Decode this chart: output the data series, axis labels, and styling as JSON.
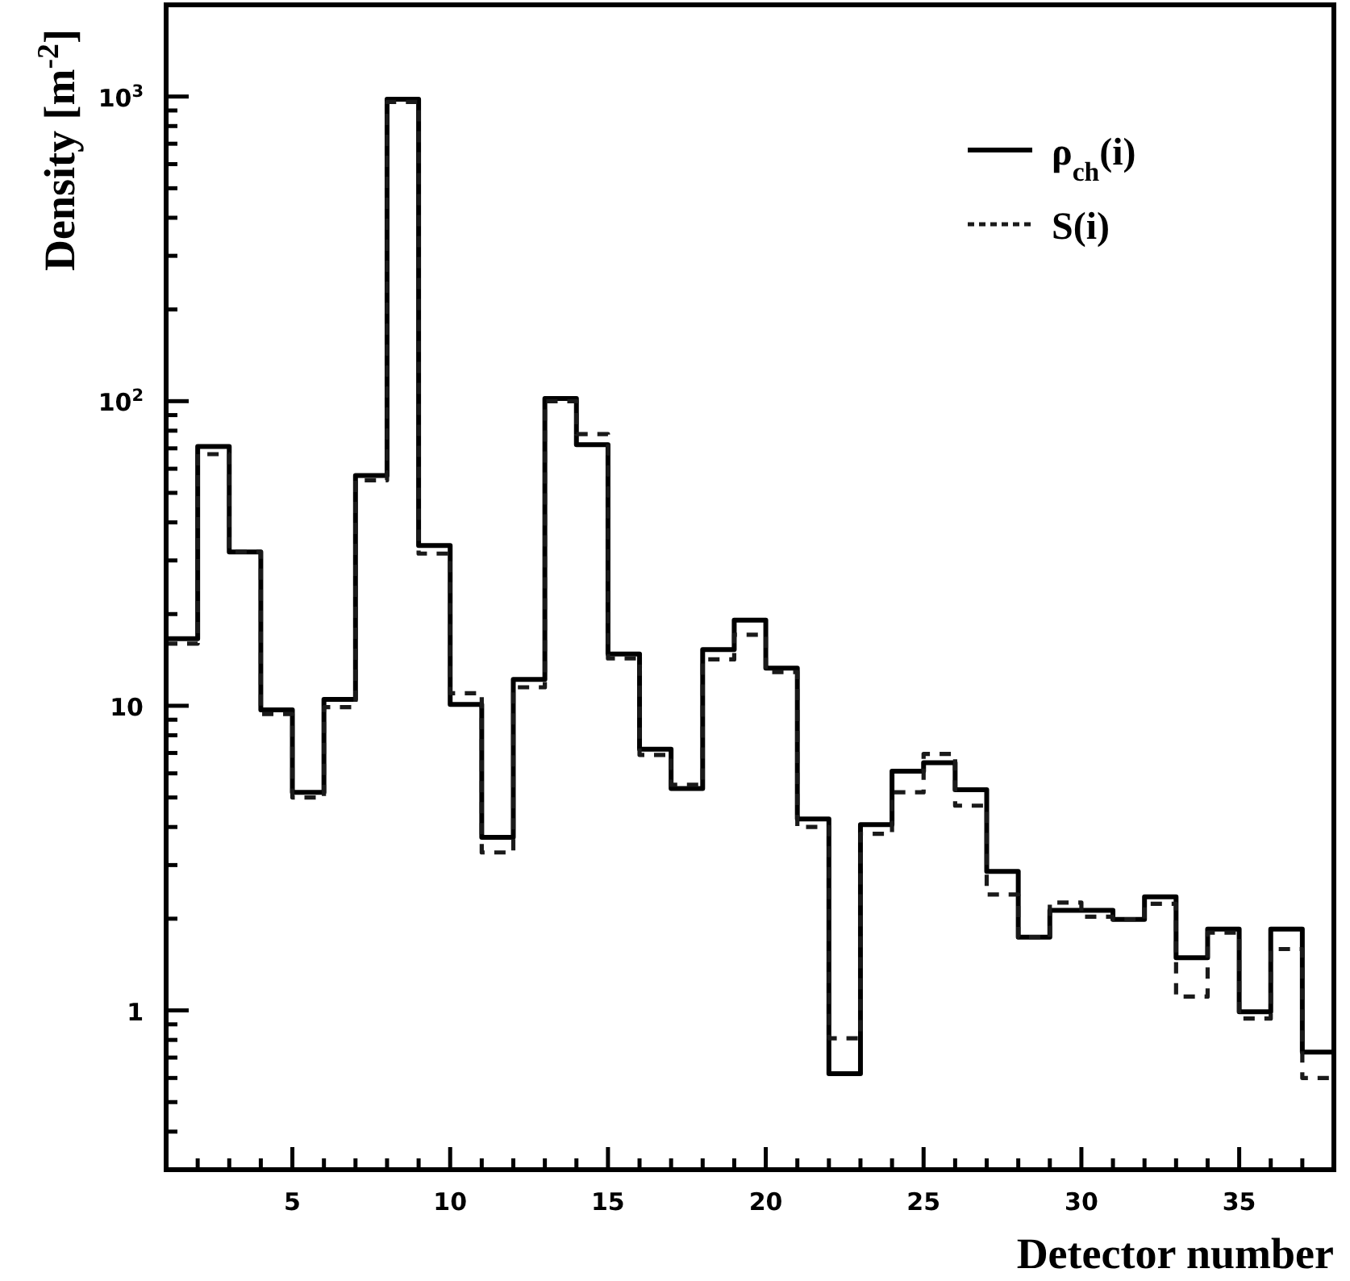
{
  "chart_data": {
    "type": "histogram",
    "xlabel": "Detector number",
    "ylabel": "Density [m$^{-2}$]",
    "bins": [
      1,
      2,
      3,
      4,
      5,
      6,
      7,
      8,
      9,
      10,
      11,
      12,
      13,
      14,
      15,
      16,
      17,
      18,
      19,
      20,
      21,
      22,
      23,
      24,
      25,
      26,
      27,
      28,
      29,
      30,
      31,
      32,
      33,
      34,
      35,
      36,
      37,
      38
    ],
    "series": [
      {
        "name": "ρ$_{ch}$(i)",
        "color": "#000000",
        "line_style": "solid",
        "values": [
          16.6,
          71,
          32,
          9.7,
          5.2,
          10.5,
          57,
          980,
          33.6,
          10.1,
          3.7,
          12.2,
          102,
          72,
          14.8,
          7.2,
          5.35,
          15.3,
          19.1,
          13.3,
          4.25,
          0.62,
          4.07,
          6.1,
          6.5,
          5.3,
          2.86,
          1.74,
          2.13,
          2.13,
          1.99,
          2.36,
          1.49,
          1.85,
          0.99,
          1.85,
          0.73
        ]
      },
      {
        "name": "S(i)",
        "color": "#1a1a1a",
        "line_style": "dashed",
        "values": [
          16,
          67,
          32,
          9.4,
          5.0,
          9.9,
          55,
          960,
          31.6,
          11,
          3.3,
          11.5,
          100,
          78,
          14.3,
          6.9,
          5.5,
          14.2,
          17.1,
          12.9,
          4.0,
          0.81,
          3.8,
          5.2,
          6.95,
          4.7,
          2.4,
          1.74,
          2.26,
          2.03,
          1.99,
          2.24,
          1.11,
          1.8,
          0.94,
          1.59,
          0.6
        ]
      }
    ],
    "xlim": [
      1,
      38
    ],
    "ylim": [
      0.3,
      2000
    ],
    "log": "y",
    "legend": "top right",
    "xticks": [
      {
        "value": 2,
        "label": null
      },
      {
        "value": 3,
        "label": null
      },
      {
        "value": 4,
        "label": null
      },
      5,
      {
        "value": 6,
        "label": null
      },
      {
        "value": 7,
        "label": null
      },
      {
        "value": 8,
        "label": null
      },
      {
        "value": 9,
        "label": null
      },
      10,
      {
        "value": 11,
        "label": null
      },
      {
        "value": 12,
        "label": null
      },
      {
        "value": 13,
        "label": null
      },
      {
        "value": 14,
        "label": null
      },
      15,
      {
        "value": 16,
        "label": null
      },
      {
        "value": 17,
        "label": null
      },
      {
        "value": 18,
        "label": null
      },
      {
        "value": 19,
        "label": null
      },
      20,
      {
        "value": 21,
        "label": null
      },
      {
        "value": 22,
        "label": null
      },
      {
        "value": 23,
        "label": null
      },
      {
        "value": 24,
        "label": null
      },
      25,
      {
        "value": 26,
        "label": null
      },
      {
        "value": 27,
        "label": null
      },
      {
        "value": 28,
        "label": null
      },
      {
        "value": 29,
        "label": null
      },
      30,
      {
        "value": 31,
        "label": null
      },
      {
        "value": 32,
        "label": null
      },
      {
        "value": 33,
        "label": null
      },
      {
        "value": 34,
        "label": null
      },
      35,
      {
        "value": 36,
        "label": null
      },
      {
        "value": 37,
        "label": null
      }
    ],
    "yticks": [
      {
        "value": 0.4,
        "label": null
      },
      {
        "value": 0.5,
        "label": null
      },
      {
        "value": 0.6,
        "label": null
      },
      {
        "value": 0.7,
        "label": null
      },
      {
        "value": 0.8,
        "label": null
      },
      {
        "value": 0.9,
        "label": null
      },
      1,
      {
        "value": 2,
        "label": null
      },
      {
        "value": 3,
        "label": null
      },
      {
        "value": 4,
        "label": null
      },
      {
        "value": 5,
        "label": null
      },
      {
        "value": 6,
        "label": null
      },
      {
        "value": 7,
        "label": null
      },
      {
        "value": 8,
        "label": null
      },
      {
        "value": 9,
        "label": null
      },
      10,
      {
        "value": 20,
        "label": null
      },
      {
        "value": 30,
        "label": null
      },
      {
        "value": 40,
        "label": null
      },
      {
        "value": 50,
        "label": null
      },
      {
        "value": 60,
        "label": null
      },
      {
        "value": 70,
        "label": null
      },
      {
        "value": 80,
        "label": null
      },
      {
        "value": 90,
        "label": null
      },
      {
        "value": 100,
        "label": "10$^{2}$"
      },
      {
        "value": 200,
        "label": null
      },
      {
        "value": 300,
        "label": null
      },
      {
        "value": 400,
        "label": null
      },
      {
        "value": 500,
        "label": null
      },
      {
        "value": 600,
        "label": null
      },
      {
        "value": 700,
        "label": null
      },
      {
        "value": 800,
        "label": null
      },
      {
        "value": 900,
        "label": null
      },
      {
        "value": 1000,
        "label": "10$^{3}$"
      }
    ]
  }
}
